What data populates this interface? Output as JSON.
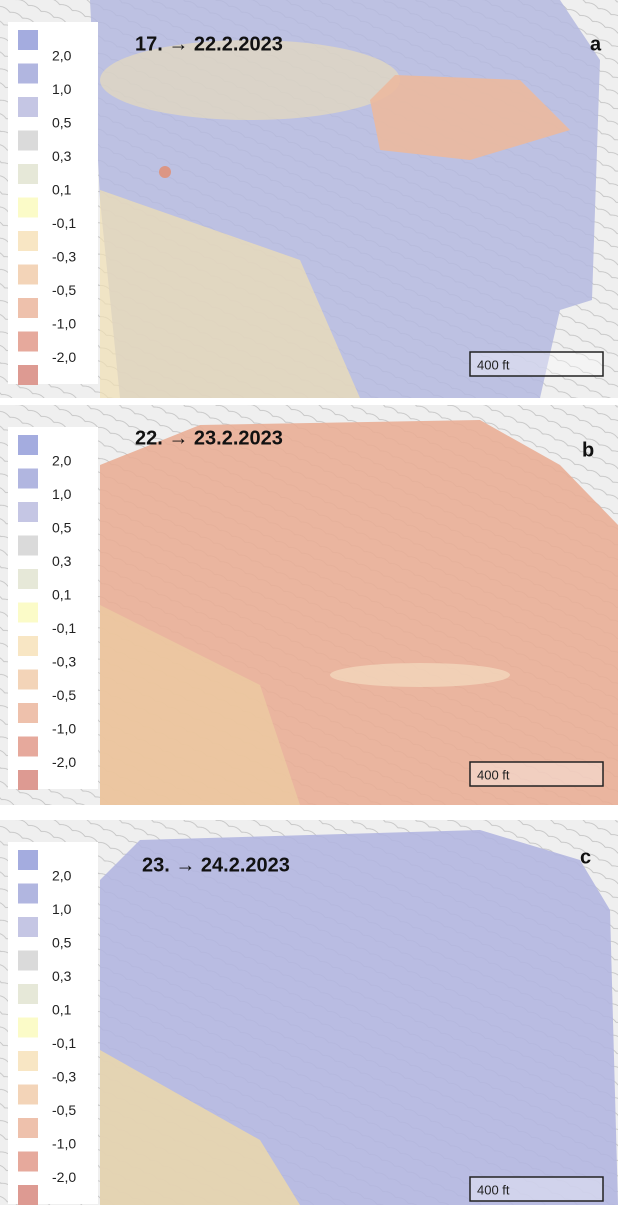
{
  "panels": [
    {
      "title": "17. → 22.2.2023",
      "letter": "a",
      "scale": "400 ft"
    },
    {
      "title": "22. → 23.2.2023",
      "letter": "b",
      "scale": "400 ft"
    },
    {
      "title": "23. → 24.2.2023",
      "letter": "c",
      "scale": "400 ft"
    }
  ],
  "legend": {
    "labels": [
      "2,0",
      "1,0",
      "0,5",
      "0,3",
      "0,1",
      "-0,1",
      "-0,3",
      "-0,5",
      "-1,0",
      "-2,0"
    ],
    "colors": [
      "#a4acdf",
      "#b1b6e0",
      "#c5c6e4",
      "#dadada",
      "#e6e8d8",
      "#fbfbc8",
      "#f8e6c4",
      "#f3d4b8",
      "#eec1ac",
      "#e6a99c",
      "#dd9a92"
    ]
  }
}
